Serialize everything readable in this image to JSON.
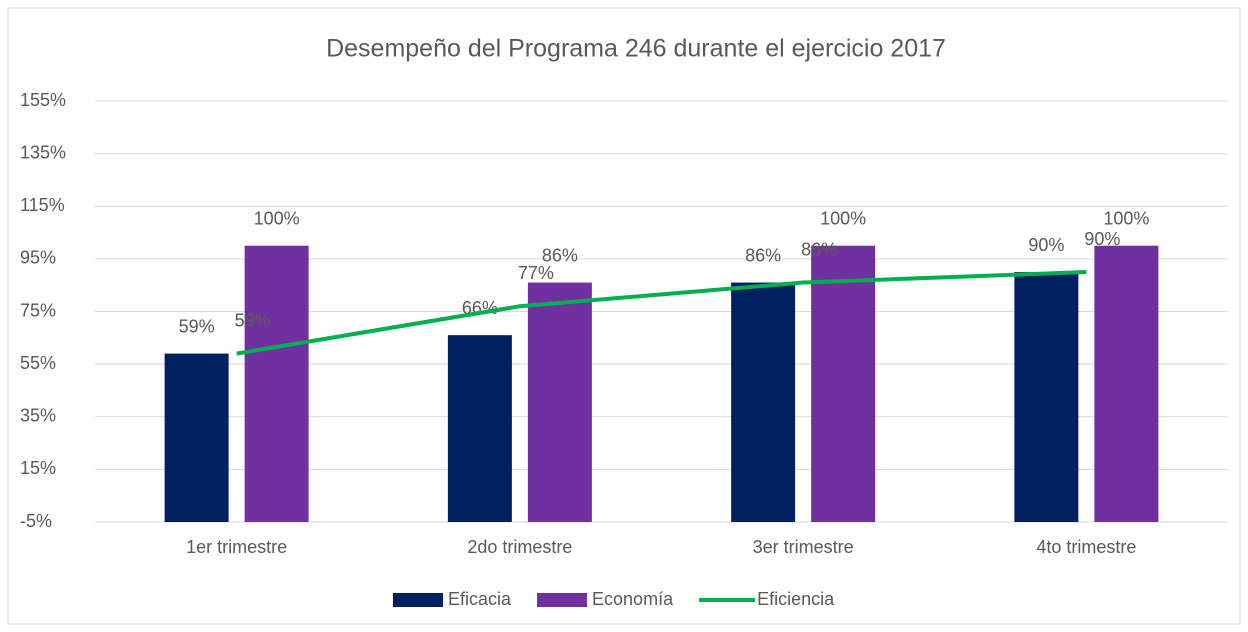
{
  "chart_data": {
    "type": "bar",
    "title": "Desempeño del Programa 246 durante el ejercicio 2017",
    "categories": [
      "1er trimestre",
      "2do trimestre",
      "3er trimestre",
      "4to trimestre"
    ],
    "series": [
      {
        "name": "Eficacia",
        "color": "#002060",
        "values": [
          59,
          66,
          86,
          90
        ],
        "value_labels": [
          "59%",
          "66%",
          "86%",
          "90%"
        ]
      },
      {
        "name": "Economía",
        "color": "#7030a0",
        "values": [
          100,
          86,
          100,
          100
        ],
        "value_labels": [
          "100%",
          "86%",
          "100%",
          "100%"
        ]
      },
      {
        "name": "Eficiencia",
        "color": "#00b050",
        "type": "line",
        "values": [
          59,
          77,
          86,
          90
        ],
        "value_labels": [
          "59%",
          "77%",
          "86%",
          "90%"
        ]
      }
    ],
    "ylim": [
      -5,
      155
    ],
    "yticks": [
      {
        "value": -5,
        "label": "-5%"
      },
      {
        "value": 15,
        "label": "15%"
      },
      {
        "value": 35,
        "label": "35%"
      },
      {
        "value": 55,
        "label": "55%"
      },
      {
        "value": 75,
        "label": "75%"
      },
      {
        "value": 95,
        "label": "95%"
      },
      {
        "value": 115,
        "label": "115%"
      },
      {
        "value": 135,
        "label": "135%"
      },
      {
        "value": 155,
        "label": "155%"
      }
    ],
    "grid": true,
    "legend": "bottom"
  }
}
